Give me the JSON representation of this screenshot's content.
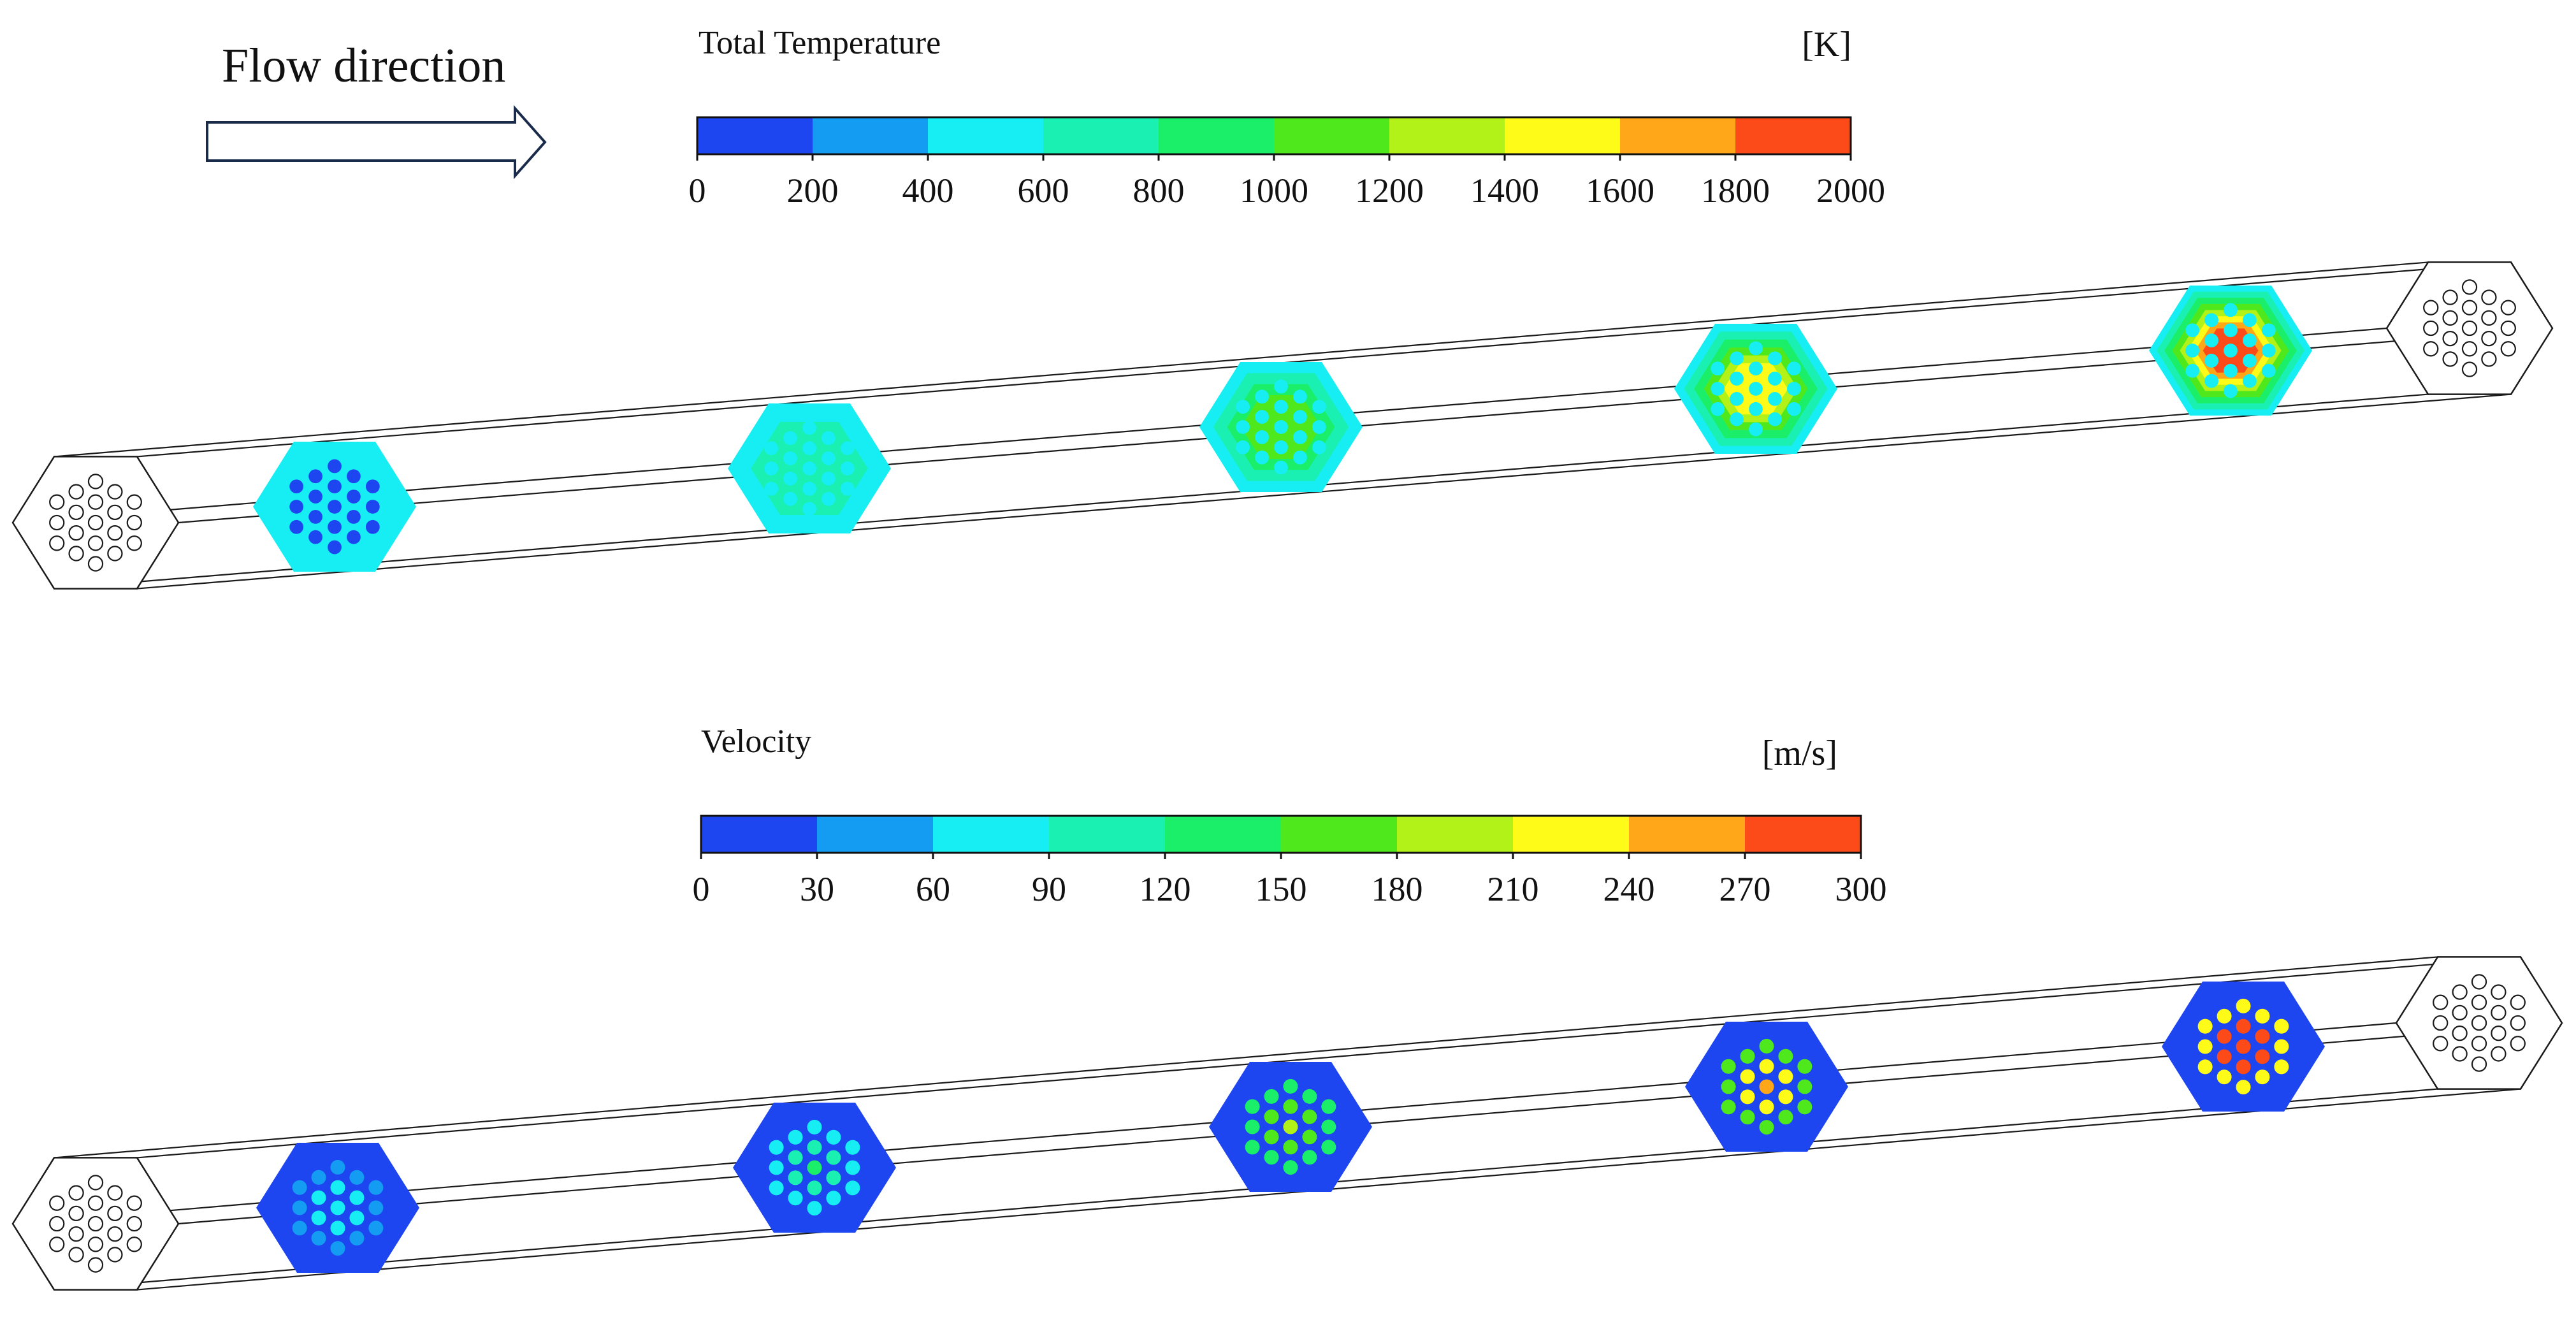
{
  "flow_label": "Flow direction",
  "colors": {
    "scale": [
      "#1d45f0",
      "#139cf2",
      "#16eef4",
      "#19f0b1",
      "#1bef69",
      "#4fe81d",
      "#b2f219",
      "#fffb19",
      "#ffa619",
      "#fc4b18"
    ],
    "background_cold": "#16eef4",
    "velocity_field": "#1d45f0",
    "outline": "#1a1a1a"
  },
  "temperature_panel": {
    "title": "Total Temperature",
    "unit": "[K]",
    "ticks": [
      "0",
      "200",
      "400",
      "600",
      "800",
      "1000",
      "1200",
      "1400",
      "1600",
      "1800",
      "2000"
    ],
    "range": [
      0,
      2000
    ],
    "sections_hot_level": [
      0.05,
      0.35,
      0.6,
      0.8,
      0.95
    ]
  },
  "velocity_panel": {
    "title": "Velocity",
    "unit": "[m/s]",
    "ticks": [
      "0",
      "30",
      "60",
      "90",
      "120",
      "150",
      "180",
      "210",
      "240",
      "270",
      "300"
    ],
    "range": [
      0,
      300
    ],
    "sections_hot_level": [
      0.1,
      0.25,
      0.45,
      0.65,
      0.85
    ]
  }
}
